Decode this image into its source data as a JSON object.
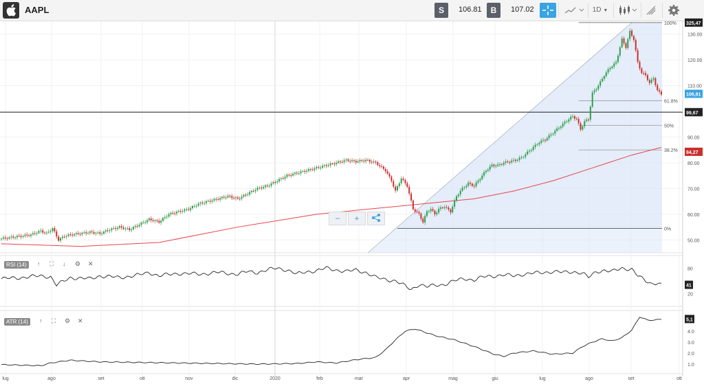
{
  "header": {
    "symbol": "AAPL",
    "sell_label": "S",
    "sell_price": "106.81",
    "buy_label": "B",
    "buy_price": "107.02",
    "timeframe": "1D",
    "icons": [
      "apple-logo-icon",
      "crosshair-icon",
      "line-chart-icon",
      "candlestick-icon",
      "drawing-icon",
      "gear-icon"
    ]
  },
  "colors": {
    "up": "#2e9e4a",
    "down": "#c9302c",
    "ma": "#e8424b",
    "fib_fill": "#dbe7f7",
    "last_price": "#3aa3e3",
    "line": "#222222"
  },
  "chart_data": [
    {
      "type": "candlestick",
      "symbol": "AAPL",
      "x_ticks": [
        "lug",
        "ago",
        "set",
        "ott",
        "nov",
        "dic",
        "2020",
        "feb",
        "mar",
        "apr",
        "mag",
        "giu",
        "lug",
        "ago",
        "set",
        "ott"
      ],
      "y_ticks": [
        "50.00",
        "60.00",
        "70.00",
        "80.00",
        "90.00",
        "100.00",
        "110.00",
        "120.00",
        "130.00"
      ],
      "ylim": [
        45,
        135
      ],
      "close_series": [
        [
          0,
          50.5
        ],
        [
          5,
          51
        ],
        [
          10,
          51.5
        ],
        [
          15,
          52
        ],
        [
          20,
          53.5
        ],
        [
          23,
          52.5
        ],
        [
          26,
          54.5
        ],
        [
          29,
          50
        ],
        [
          32,
          51.5
        ],
        [
          35,
          52
        ],
        [
          40,
          52.5
        ],
        [
          45,
          53
        ],
        [
          50,
          52.5
        ],
        [
          55,
          54
        ],
        [
          60,
          55
        ],
        [
          65,
          54
        ],
        [
          70,
          56
        ],
        [
          75,
          58
        ],
        [
          80,
          57
        ],
        [
          85,
          60
        ],
        [
          90,
          61
        ],
        [
          95,
          62
        ],
        [
          100,
          64
        ],
        [
          105,
          65
        ],
        [
          110,
          66
        ],
        [
          115,
          67
        ],
        [
          120,
          66
        ],
        [
          125,
          68
        ],
        [
          130,
          70
        ],
        [
          135,
          71
        ],
        [
          140,
          73
        ],
        [
          145,
          75
        ],
        [
          150,
          76
        ],
        [
          155,
          77
        ],
        [
          160,
          78
        ],
        [
          165,
          79
        ],
        [
          170,
          80
        ],
        [
          175,
          81
        ],
        [
          180,
          80.5
        ],
        [
          185,
          81
        ],
        [
          190,
          80
        ],
        [
          195,
          77
        ],
        [
          198,
          73
        ],
        [
          200,
          69
        ],
        [
          203,
          74
        ],
        [
          206,
          71
        ],
        [
          209,
          62
        ],
        [
          212,
          60
        ],
        [
          214,
          57
        ],
        [
          216,
          61
        ],
        [
          218,
          62
        ],
        [
          220,
          60
        ],
        [
          222,
          62
        ],
        [
          225,
          63
        ],
        [
          228,
          61
        ],
        [
          231,
          67
        ],
        [
          234,
          70
        ],
        [
          237,
          72
        ],
        [
          240,
          71
        ],
        [
          243,
          74
        ],
        [
          246,
          77
        ],
        [
          249,
          79
        ],
        [
          252,
          79
        ],
        [
          255,
          80
        ],
        [
          258,
          80.5
        ],
        [
          261,
          81
        ],
        [
          264,
          82
        ],
        [
          267,
          84
        ],
        [
          270,
          86
        ],
        [
          273,
          88
        ],
        [
          276,
          89
        ],
        [
          279,
          91
        ],
        [
          282,
          93
        ],
        [
          285,
          95
        ],
        [
          288,
          97
        ],
        [
          290,
          98
        ],
        [
          292,
          97
        ],
        [
          294,
          93
        ],
        [
          296,
          96
        ],
        [
          298,
          97
        ],
        [
          300,
          107
        ],
        [
          303,
          110
        ],
        [
          306,
          114
        ],
        [
          309,
          117
        ],
        [
          312,
          119
        ],
        [
          315,
          128
        ],
        [
          317,
          125
        ],
        [
          319,
          131
        ],
        [
          321,
          128
        ],
        [
          323,
          119
        ],
        [
          325,
          115
        ],
        [
          327,
          114
        ],
        [
          329,
          111
        ],
        [
          331,
          113
        ],
        [
          333,
          108
        ],
        [
          335,
          106.8
        ]
      ],
      "moving_average": {
        "name": "",
        "values": [
          [
            0,
            48.5
          ],
          [
            40,
            47.5
          ],
          [
            80,
            49
          ],
          [
            120,
            55
          ],
          [
            160,
            60
          ],
          [
            200,
            63
          ],
          [
            240,
            66
          ],
          [
            260,
            69
          ],
          [
            280,
            73
          ],
          [
            300,
            78
          ],
          [
            320,
            83
          ],
          [
            335,
            86
          ]
        ]
      },
      "horizontal_line": 99.67,
      "fibonacci": {
        "high": 134.5,
        "low": 54.5,
        "levels": [
          {
            "label": "100%",
            "value": 134.5
          },
          {
            "label": "61.8%",
            "value": 104.1
          },
          {
            "label": "50%",
            "value": 94.5
          },
          {
            "label": "38.2%",
            "value": 85.0
          },
          {
            "label": "0%",
            "value": 54.5
          }
        ]
      },
      "price_labels": [
        "325,47",
        "106,81",
        "99,67",
        "84,27"
      ]
    },
    {
      "type": "line",
      "name": "RSI (14)",
      "y_ticks": [
        "80",
        "20"
      ],
      "ylim": [
        0,
        100
      ],
      "last_value_label": "41",
      "values": [
        [
          0,
          55
        ],
        [
          10,
          58
        ],
        [
          20,
          62
        ],
        [
          25,
          60
        ],
        [
          28,
          40
        ],
        [
          35,
          58
        ],
        [
          45,
          55
        ],
        [
          50,
          62
        ],
        [
          60,
          58
        ],
        [
          70,
          64
        ],
        [
          75,
          70
        ],
        [
          80,
          62
        ],
        [
          90,
          68
        ],
        [
          100,
          66
        ],
        [
          110,
          70
        ],
        [
          120,
          66
        ],
        [
          125,
          72
        ],
        [
          130,
          70
        ],
        [
          135,
          76
        ],
        [
          140,
          80
        ],
        [
          145,
          76
        ],
        [
          150,
          66
        ],
        [
          155,
          72
        ],
        [
          160,
          74
        ],
        [
          165,
          80
        ],
        [
          170,
          76
        ],
        [
          175,
          72
        ],
        [
          180,
          76
        ],
        [
          185,
          70
        ],
        [
          190,
          58
        ],
        [
          195,
          54
        ],
        [
          200,
          50
        ],
        [
          205,
          38
        ],
        [
          208,
          30
        ],
        [
          212,
          42
        ],
        [
          216,
          36
        ],
        [
          220,
          40
        ],
        [
          225,
          42
        ],
        [
          230,
          50
        ],
        [
          235,
          56
        ],
        [
          240,
          52
        ],
        [
          245,
          60
        ],
        [
          250,
          62
        ],
        [
          255,
          64
        ],
        [
          260,
          62
        ],
        [
          265,
          66
        ],
        [
          270,
          68
        ],
        [
          275,
          70
        ],
        [
          280,
          72
        ],
        [
          285,
          70
        ],
        [
          290,
          72
        ],
        [
          295,
          68
        ],
        [
          298,
          58
        ],
        [
          302,
          72
        ],
        [
          306,
          75
        ],
        [
          310,
          72
        ],
        [
          315,
          80
        ],
        [
          320,
          78
        ],
        [
          323,
          62
        ],
        [
          327,
          50
        ],
        [
          330,
          44
        ],
        [
          333,
          46
        ],
        [
          335,
          41
        ]
      ]
    },
    {
      "type": "line",
      "name": "ATR (14)",
      "y_ticks": [
        "1.0",
        "2.0",
        "3.0",
        "4.0"
      ],
      "ylim": [
        0.5,
        5.5
      ],
      "last_value_label": "5,1",
      "values": [
        [
          0,
          0.95
        ],
        [
          20,
          0.85
        ],
        [
          25,
          1.1
        ],
        [
          35,
          1.35
        ],
        [
          50,
          1.2
        ],
        [
          70,
          1.15
        ],
        [
          90,
          1.1
        ],
        [
          110,
          1.05
        ],
        [
          130,
          1.0
        ],
        [
          150,
          1.05
        ],
        [
          160,
          1.2
        ],
        [
          170,
          1.1
        ],
        [
          180,
          1.4
        ],
        [
          190,
          1.6
        ],
        [
          195,
          2.3
        ],
        [
          200,
          3.2
        ],
        [
          205,
          4.0
        ],
        [
          210,
          4.2
        ],
        [
          215,
          3.9
        ],
        [
          220,
          3.6
        ],
        [
          230,
          3.2
        ],
        [
          240,
          2.6
        ],
        [
          250,
          1.9
        ],
        [
          255,
          1.7
        ],
        [
          260,
          2.0
        ],
        [
          270,
          2.2
        ],
        [
          280,
          1.9
        ],
        [
          290,
          2.0
        ],
        [
          295,
          2.6
        ],
        [
          300,
          3.0
        ],
        [
          305,
          3.3
        ],
        [
          310,
          3.1
        ],
        [
          315,
          3.4
        ],
        [
          320,
          4.1
        ],
        [
          324,
          5.3
        ],
        [
          328,
          5.0
        ],
        [
          332,
          5.0
        ],
        [
          335,
          5.1
        ]
      ]
    }
  ],
  "rsi_label": "RSI (14)",
  "atr_label": "ATR (14)",
  "zoom": {
    "minus": "−",
    "plus": "+"
  }
}
